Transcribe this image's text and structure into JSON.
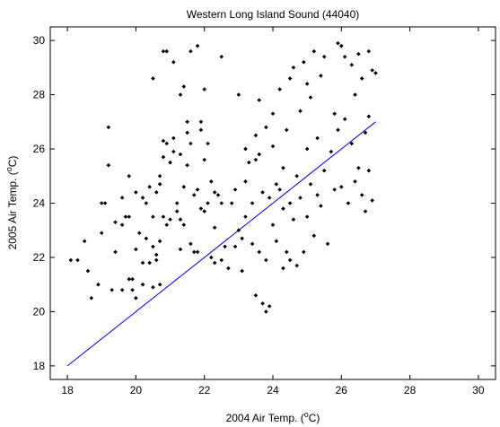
{
  "chart_data": {
    "type": "scatter",
    "title": "Western Long Island Sound (44040)",
    "xlabel": {
      "prefix": "2004 Air Temp. (",
      "sup": "o",
      "suffix": "C)"
    },
    "ylabel": {
      "prefix": "2005 Air Temp. (",
      "sup": "o",
      "suffix": "C)"
    },
    "xlim": [
      17.5,
      30.5
    ],
    "ylim": [
      17.5,
      30.5
    ],
    "xticks": [
      18,
      20,
      22,
      24,
      26,
      28,
      30
    ],
    "yticks": [
      18,
      20,
      22,
      24,
      26,
      28,
      30
    ],
    "xtick_labels": [
      "18",
      "20",
      "22",
      "24",
      "26",
      "28",
      "30"
    ],
    "ytick_labels": [
      "18",
      "20",
      "22",
      "24",
      "26",
      "28",
      "30"
    ],
    "grid": false,
    "colors": {
      "points": "#000000",
      "line": "#0000ff"
    },
    "line": {
      "x": [
        18,
        27
      ],
      "y": [
        18,
        27
      ]
    },
    "points": [
      [
        18.1,
        21.9
      ],
      [
        18.3,
        21.9
      ],
      [
        18.5,
        22.6
      ],
      [
        18.6,
        21.5
      ],
      [
        18.7,
        20.5
      ],
      [
        18.9,
        21.0
      ],
      [
        19.0,
        24.0
      ],
      [
        19.0,
        22.9
      ],
      [
        19.1,
        24.0
      ],
      [
        19.2,
        25.4
      ],
      [
        19.2,
        26.8
      ],
      [
        19.3,
        20.8
      ],
      [
        19.4,
        23.3
      ],
      [
        19.4,
        22.2
      ],
      [
        19.6,
        23.2
      ],
      [
        19.6,
        20.8
      ],
      [
        19.6,
        24.2
      ],
      [
        19.7,
        23.5
      ],
      [
        19.8,
        23.5
      ],
      [
        19.8,
        21.2
      ],
      [
        19.8,
        25.0
      ],
      [
        19.9,
        21.2
      ],
      [
        19.9,
        20.8
      ],
      [
        20.0,
        20.5
      ],
      [
        20.0,
        24.4
      ],
      [
        20.0,
        22.3
      ],
      [
        20.1,
        22.9
      ],
      [
        20.2,
        24.2
      ],
      [
        20.2,
        21.8
      ],
      [
        20.2,
        21.0
      ],
      [
        20.3,
        24.0
      ],
      [
        20.3,
        22.7
      ],
      [
        20.4,
        24.6
      ],
      [
        20.4,
        21.8
      ],
      [
        20.5,
        20.9
      ],
      [
        20.5,
        22.4
      ],
      [
        20.5,
        23.5
      ],
      [
        20.5,
        28.6
      ],
      [
        20.6,
        21.9
      ],
      [
        20.6,
        24.4
      ],
      [
        20.6,
        22.1
      ],
      [
        20.7,
        21.0
      ],
      [
        20.7,
        22.6
      ],
      [
        20.7,
        25.0
      ],
      [
        20.7,
        24.7
      ],
      [
        20.8,
        25.7
      ],
      [
        20.8,
        23.5
      ],
      [
        20.8,
        29.6
      ],
      [
        20.8,
        26.3
      ],
      [
        20.9,
        23.2
      ],
      [
        20.9,
        29.6
      ],
      [
        20.9,
        26.2
      ],
      [
        21.0,
        23.4
      ],
      [
        21.0,
        25.5
      ],
      [
        21.1,
        29.2
      ],
      [
        21.1,
        25.9
      ],
      [
        21.1,
        26.4
      ],
      [
        21.2,
        24.0
      ],
      [
        21.2,
        23.7
      ],
      [
        21.3,
        28.0
      ],
      [
        21.3,
        23.4
      ],
      [
        21.3,
        22.3
      ],
      [
        21.3,
        25.8
      ],
      [
        21.4,
        23.2
      ],
      [
        21.4,
        28.3
      ],
      [
        21.4,
        24.6
      ],
      [
        21.5,
        27.0
      ],
      [
        21.5,
        26.6
      ],
      [
        21.5,
        25.4
      ],
      [
        21.6,
        22.5
      ],
      [
        21.6,
        29.6
      ],
      [
        21.6,
        26.2
      ],
      [
        21.7,
        24.3
      ],
      [
        21.7,
        22.2
      ],
      [
        21.8,
        29.8
      ],
      [
        21.8,
        22.2
      ],
      [
        21.8,
        24.5
      ],
      [
        21.9,
        27.0
      ],
      [
        21.9,
        23.8
      ],
      [
        21.9,
        26.7
      ],
      [
        22.0,
        28.2
      ],
      [
        22.0,
        23.7
      ],
      [
        22.0,
        25.6
      ],
      [
        22.1,
        26.2
      ],
      [
        22.1,
        24.0
      ],
      [
        22.2,
        22.0
      ],
      [
        22.2,
        24.8
      ],
      [
        22.3,
        23.1
      ],
      [
        22.3,
        21.8
      ],
      [
        22.3,
        24.4
      ],
      [
        22.4,
        24.3
      ],
      [
        22.5,
        24.0
      ],
      [
        22.5,
        21.9
      ],
      [
        22.5,
        29.4
      ],
      [
        22.6,
        22.4
      ],
      [
        22.7,
        21.6
      ],
      [
        22.8,
        24.0
      ],
      [
        22.9,
        22.4
      ],
      [
        22.9,
        24.5
      ],
      [
        23.0,
        23.0
      ],
      [
        23.0,
        28.0
      ],
      [
        23.1,
        21.5
      ],
      [
        23.1,
        22.7
      ],
      [
        23.2,
        23.5
      ],
      [
        23.2,
        26.0
      ],
      [
        23.2,
        24.8
      ],
      [
        23.3,
        25.5
      ],
      [
        23.4,
        22.5
      ],
      [
        23.4,
        24.0
      ],
      [
        23.5,
        25.6
      ],
      [
        23.5,
        20.6
      ],
      [
        23.5,
        26.5
      ],
      [
        23.6,
        22.2
      ],
      [
        23.6,
        27.8
      ],
      [
        23.6,
        25.8
      ],
      [
        23.7,
        24.4
      ],
      [
        23.7,
        20.3
      ],
      [
        23.8,
        26.8
      ],
      [
        23.8,
        21.9
      ],
      [
        23.8,
        20.0
      ],
      [
        23.9,
        24.2
      ],
      [
        23.9,
        20.2
      ],
      [
        24.0,
        26.1
      ],
      [
        24.0,
        23.2
      ],
      [
        24.0,
        27.3
      ],
      [
        24.1,
        24.7
      ],
      [
        24.1,
        22.6
      ],
      [
        24.2,
        28.2
      ],
      [
        24.2,
        24.5
      ],
      [
        24.3,
        21.6
      ],
      [
        24.3,
        25.3
      ],
      [
        24.3,
        23.8
      ],
      [
        24.4,
        22.2
      ],
      [
        24.4,
        26.7
      ],
      [
        24.5,
        24.0
      ],
      [
        24.5,
        28.6
      ],
      [
        24.5,
        21.9
      ],
      [
        24.6,
        29.0
      ],
      [
        24.6,
        23.4
      ],
      [
        24.7,
        25.0
      ],
      [
        24.7,
        21.7
      ],
      [
        24.8,
        27.4
      ],
      [
        24.8,
        24.2
      ],
      [
        24.9,
        29.2
      ],
      [
        24.9,
        22.2
      ],
      [
        25.0,
        26.0
      ],
      [
        25.0,
        28.4
      ],
      [
        25.0,
        23.5
      ],
      [
        25.1,
        27.9
      ],
      [
        25.1,
        24.7
      ],
      [
        25.2,
        29.6
      ],
      [
        25.2,
        22.8
      ],
      [
        25.3,
        24.3
      ],
      [
        25.3,
        26.4
      ],
      [
        25.4,
        28.7
      ],
      [
        25.4,
        23.9
      ],
      [
        25.5,
        29.4
      ],
      [
        25.5,
        25.2
      ],
      [
        25.6,
        22.5
      ],
      [
        25.7,
        25.9
      ],
      [
        25.8,
        27.3
      ],
      [
        25.8,
        24.5
      ],
      [
        25.9,
        29.9
      ],
      [
        25.9,
        26.7
      ],
      [
        26.0,
        29.8
      ],
      [
        26.0,
        24.6
      ],
      [
        26.1,
        29.4
      ],
      [
        26.1,
        27.1
      ],
      [
        26.2,
        24.0
      ],
      [
        26.3,
        29.1
      ],
      [
        26.3,
        26.2
      ],
      [
        26.4,
        28.0
      ],
      [
        26.4,
        24.8
      ],
      [
        26.5,
        29.5
      ],
      [
        26.5,
        25.3
      ],
      [
        26.6,
        28.6
      ],
      [
        26.7,
        23.7
      ],
      [
        26.7,
        26.6
      ],
      [
        26.8,
        29.6
      ],
      [
        26.8,
        25.2
      ],
      [
        26.9,
        28.9
      ],
      [
        26.9,
        24.1
      ],
      [
        27.0,
        28.8
      ],
      [
        26.8,
        27.2
      ],
      [
        26.6,
        24.3
      ]
    ]
  }
}
